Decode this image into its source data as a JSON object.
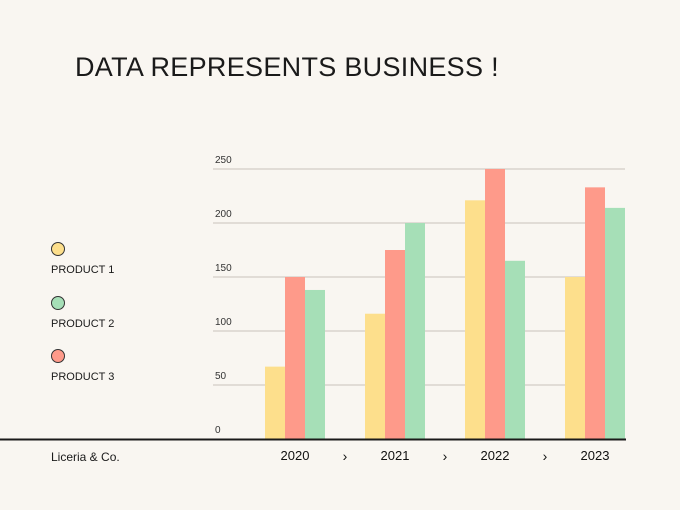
{
  "title": "DATA REPRESENTS BUSINESS !",
  "brand": "Liceria & Co.",
  "arrow_glyph": "›",
  "legend": [
    {
      "label": "PRODUCT 1",
      "color": "#fddf8c"
    },
    {
      "label": "PRODUCT 2",
      "color": "#a6dfb7"
    },
    {
      "label": "PRODUCT 3",
      "color": "#fe9a8a"
    }
  ],
  "chart_data": {
    "type": "bar",
    "title": "DATA REPRESENTS BUSINESS !",
    "xlabel": "",
    "ylabel": "",
    "categories": [
      "2020",
      "2021",
      "2022",
      "2023"
    ],
    "series": [
      {
        "name": "PRODUCT 1",
        "color": "#fddf8c",
        "values": [
          67,
          116,
          221,
          150
        ]
      },
      {
        "name": "PRODUCT 3",
        "color": "#fe9a8a",
        "values": [
          150,
          175,
          250,
          233
        ]
      },
      {
        "name": "PRODUCT 2",
        "color": "#a6dfb7",
        "values": [
          138,
          200,
          165,
          214
        ]
      }
    ],
    "yticks": [
      0,
      50,
      100,
      150,
      200,
      250
    ],
    "ylim": [
      0,
      250
    ],
    "grid": true,
    "legend_position": "left"
  }
}
